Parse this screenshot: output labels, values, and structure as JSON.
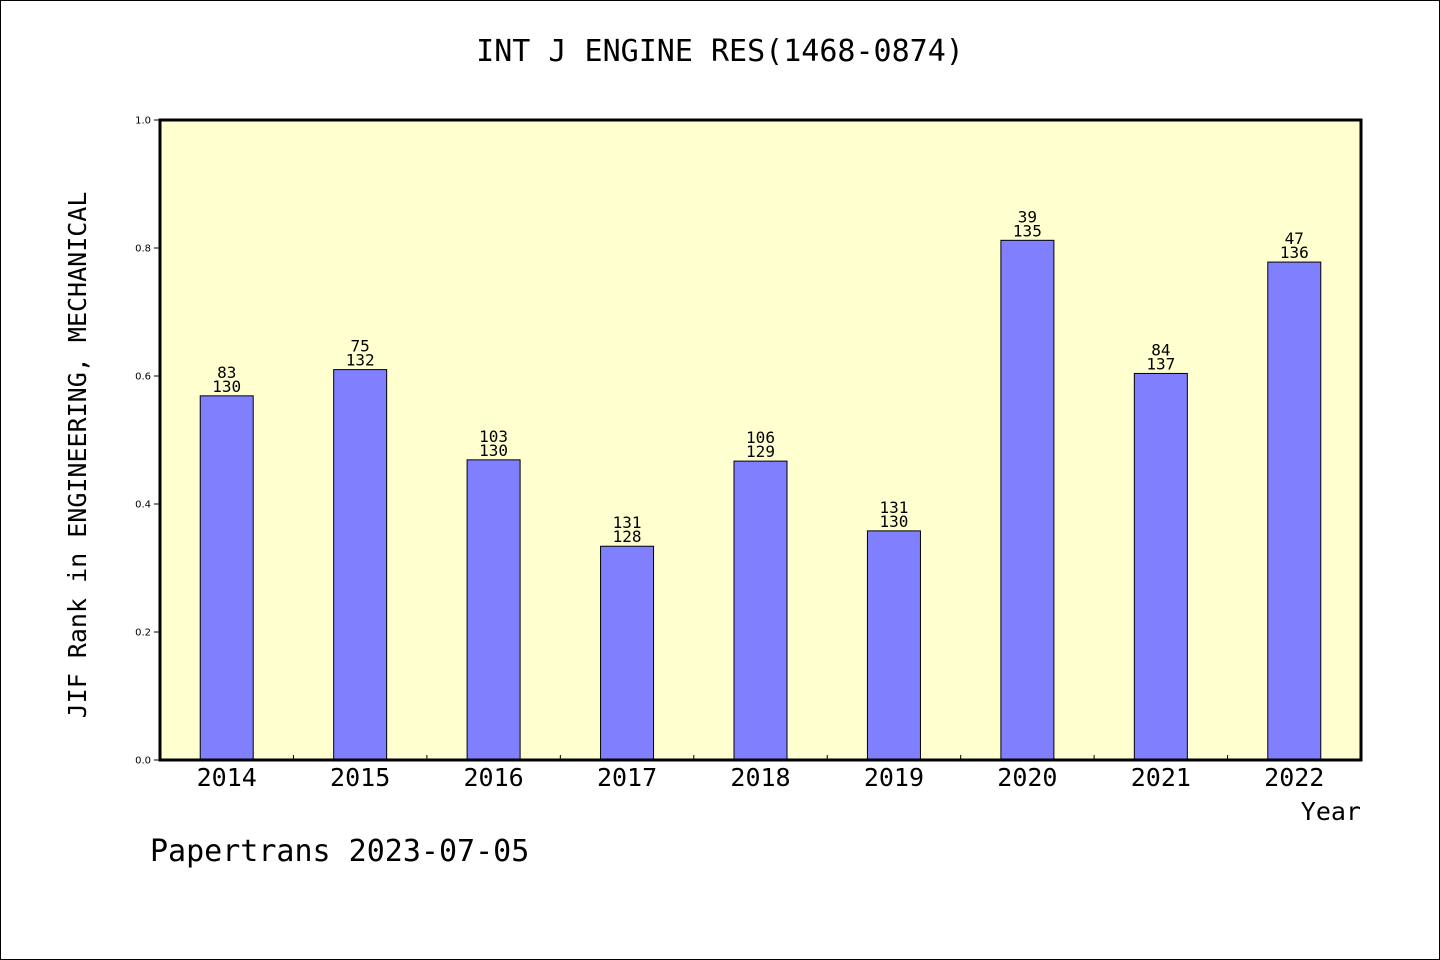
{
  "chart_data": {
    "type": "bar",
    "title": "INT J ENGINE RES(1468-0874)",
    "xlabel": "Year",
    "ylabel": "JIF Rank in ENGINEERING, MECHANICAL",
    "ylim": [
      0,
      1.0
    ],
    "yticks": [
      "0.0",
      "0.2",
      "0.4",
      "0.6",
      "0.8",
      "1.0"
    ],
    "categories": [
      "2014",
      "2015",
      "2016",
      "2017",
      "2018",
      "2019",
      "2020",
      "2021",
      "2022"
    ],
    "values": [
      0.569,
      0.61,
      0.469,
      0.334,
      0.467,
      0.358,
      0.812,
      0.604,
      0.778
    ],
    "labels_top": [
      "83",
      "75",
      "103",
      "131",
      "106",
      "131",
      "39",
      "84",
      "47"
    ],
    "labels_bottom": [
      "130",
      "132",
      "130",
      "128",
      "129",
      "130",
      "135",
      "137",
      "136"
    ],
    "colors": {
      "bar": "#8080ff",
      "plot_bg": "#ffffd0"
    }
  },
  "footer": "Papertrans 2023-07-05"
}
